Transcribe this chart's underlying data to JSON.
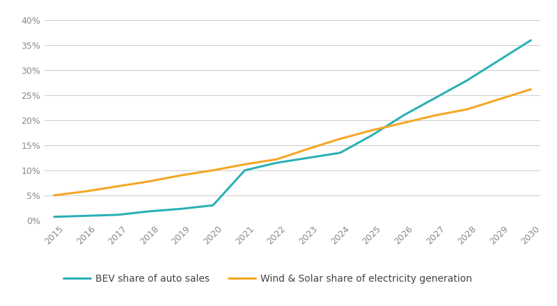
{
  "years": [
    2015,
    2016,
    2017,
    2018,
    2019,
    2020,
    2021,
    2022,
    2023,
    2024,
    2025,
    2026,
    2027,
    2028,
    2029,
    2030
  ],
  "bev": [
    0.007,
    0.009,
    0.011,
    0.018,
    0.023,
    0.03,
    0.1,
    0.115,
    0.125,
    0.135,
    0.17,
    0.21,
    0.245,
    0.28,
    0.32,
    0.36
  ],
  "wind_solar": [
    0.05,
    0.058,
    0.068,
    0.078,
    0.09,
    0.1,
    0.112,
    0.122,
    0.143,
    0.163,
    0.18,
    0.195,
    0.21,
    0.222,
    0.242,
    0.262
  ],
  "bev_color": "#2ab0b6",
  "wind_solar_color": "#f5a623",
  "bev_label": "BEV share of auto sales",
  "wind_solar_label": "Wind & Solar share of electricity generation",
  "ylim": [
    0,
    0.41
  ],
  "yticks": [
    0.0,
    0.05,
    0.1,
    0.15,
    0.2,
    0.25,
    0.3,
    0.35,
    0.4
  ],
  "bg_color": "#ffffff",
  "grid_color": "#cccccc",
  "line_width": 2.2,
  "tick_label_color": "#888888",
  "legend_fontsize": 10,
  "tick_fontsize": 9,
  "figsize": [
    8.0,
    4.4
  ],
  "dpi": 100
}
